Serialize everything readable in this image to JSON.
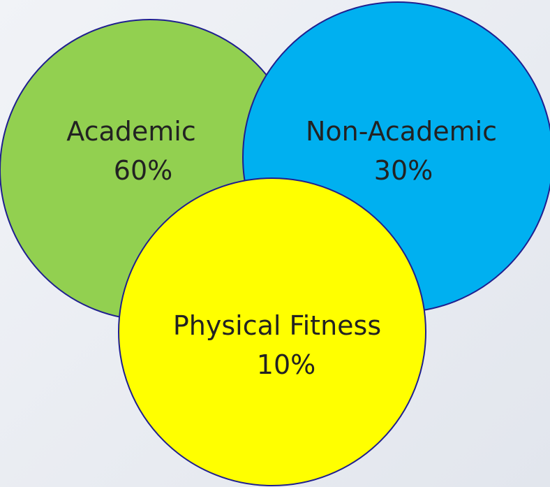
{
  "diagram": {
    "type": "venn",
    "circles": [
      {
        "id": "academic",
        "name": "Academic",
        "percent": "60%",
        "fill": "#92d050",
        "stroke": "#1f1f8f"
      },
      {
        "id": "non_academic",
        "name": "Non-Academic",
        "percent": "30%",
        "fill": "#00b0f0",
        "stroke": "#1f1f8f"
      },
      {
        "id": "physical_fitness",
        "name": "Physical Fitness",
        "percent": "10%",
        "fill": "#ffff00",
        "stroke": "#1f1f8f"
      }
    ]
  }
}
